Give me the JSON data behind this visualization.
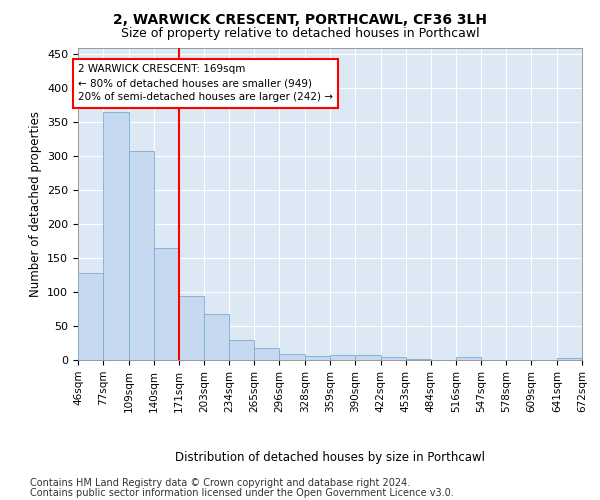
{
  "title": "2, WARWICK CRESCENT, PORTHCAWL, CF36 3LH",
  "subtitle": "Size of property relative to detached houses in Porthcawl",
  "xlabel": "Distribution of detached houses by size in Porthcawl",
  "ylabel": "Number of detached properties",
  "bar_color": "#c6d9f0",
  "bar_edge_color": "#7aadcf",
  "vline_x": 171,
  "vline_color": "red",
  "annotation_text": "2 WARWICK CRESCENT: 169sqm\n← 80% of detached houses are smaller (949)\n20% of semi-detached houses are larger (242) →",
  "annotation_box_color": "white",
  "annotation_box_edge": "red",
  "bins": [
    46,
    77,
    109,
    140,
    171,
    203,
    234,
    265,
    296,
    328,
    359,
    390,
    422,
    453,
    484,
    516,
    547,
    578,
    609,
    641,
    672
  ],
  "counts": [
    128,
    365,
    307,
    165,
    94,
    68,
    30,
    17,
    9,
    6,
    8,
    8,
    5,
    1,
    0,
    4,
    0,
    0,
    0,
    3
  ],
  "ylim": [
    0,
    460
  ],
  "yticks": [
    0,
    50,
    100,
    150,
    200,
    250,
    300,
    350,
    400,
    450
  ],
  "footer_line1": "Contains HM Land Registry data © Crown copyright and database right 2024.",
  "footer_line2": "Contains public sector information licensed under the Open Government Licence v3.0.",
  "plot_bg_color": "#dce9f5",
  "title_fontsize": 10,
  "subtitle_fontsize": 9,
  "footer_fontsize": 7,
  "grid_color": "#ffffff"
}
